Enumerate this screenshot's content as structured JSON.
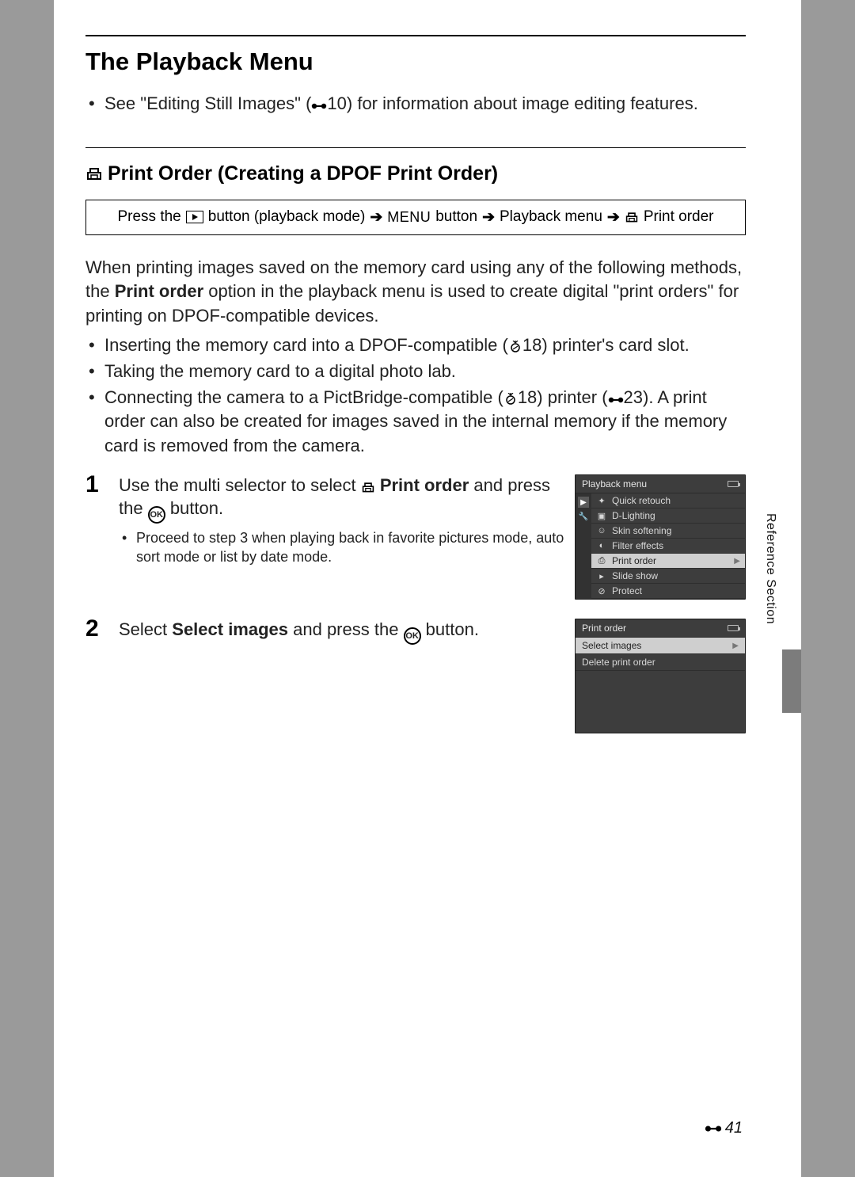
{
  "title": "The Playback Menu",
  "intro": {
    "text_a": "See \"Editing Still Images\" (",
    "ref1": "10",
    "text_b": ") for information about image editing features."
  },
  "section": {
    "title": "Print Order (Creating a DPOF Print Order)"
  },
  "breadcrumb": {
    "a": "Press the",
    "b": "button (playback mode)",
    "menu": "MENU",
    "c": "button",
    "d": "Playback menu",
    "e": "Print order"
  },
  "para1": {
    "a": "When printing images saved on the memory card using any of the following methods, the ",
    "b": "Print order",
    "c": " option in the playback menu is used to create digital \"print orders\" for printing on DPOF-compatible devices."
  },
  "bullets": {
    "b1a": "Inserting the memory card into a DPOF-compatible (",
    "b1ref": "18",
    "b1b": ") printer's card slot.",
    "b2": "Taking the memory card to a digital photo lab.",
    "b3a": "Connecting the camera to a PictBridge-compatible (",
    "b3ref1": "18",
    "b3b": ") printer (",
    "b3ref2": "23",
    "b3c": "). A print order can also be created for images saved in the internal memory if the memory card is removed from the camera."
  },
  "step1": {
    "num": "1",
    "a": "Use the multi selector to select ",
    "b": "Print order",
    "c": " and press the ",
    "d": " button.",
    "sub": "Proceed to step 3 when playing back in favorite pictures mode, auto sort mode or list by date mode."
  },
  "step2": {
    "num": "2",
    "a": "Select ",
    "b": "Select images",
    "c": " and press the ",
    "d": " button."
  },
  "screen1": {
    "title": "Playback menu",
    "items": [
      {
        "icon": "✦",
        "label": "Quick retouch",
        "selected": false
      },
      {
        "icon": "▣",
        "label": "D-Lighting",
        "selected": false
      },
      {
        "icon": "☺",
        "label": "Skin softening",
        "selected": false
      },
      {
        "icon": "◐",
        "label": "Filter effects",
        "selected": false
      },
      {
        "icon": "⎙",
        "label": "Print order",
        "selected": true
      },
      {
        "icon": "▸",
        "label": "Slide show",
        "selected": false
      },
      {
        "icon": "⊘",
        "label": "Protect",
        "selected": false
      }
    ]
  },
  "screen2": {
    "title": "Print order",
    "items": [
      {
        "label": "Select images",
        "selected": true
      },
      {
        "label": "Delete print order",
        "selected": false
      }
    ]
  },
  "sideLabel": "Reference Section",
  "pageNumber": "41",
  "colors": {
    "page_bg": "#ffffff",
    "outer_bg": "#9a9a9a",
    "screen_bg": "#3d3d3d",
    "screen_sel_bg": "#cfcfcf",
    "screen_text": "#d8d8d8"
  }
}
